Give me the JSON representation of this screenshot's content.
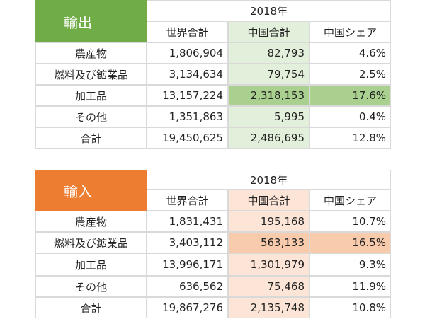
{
  "export": {
    "label": "輸出",
    "year": "2018年",
    "headers": [
      "世界合計",
      "中国合計",
      "中国シェア"
    ],
    "rows": [
      [
        "農産物",
        "1,806,904",
        "82,793",
        "4.6%"
      ],
      [
        "燃料及び鉱業品",
        "3,134,634",
        "79,754",
        "2.5%"
      ],
      [
        "加工品",
        "13,157,224",
        "2,318,153",
        "17.6%"
      ],
      [
        "その他",
        "1,351,863",
        "5,995",
        "0.4%"
      ],
      [
        "合計",
        "19,450,625",
        "2,486,695",
        "12.8%"
      ]
    ]
  },
  "import": {
    "label": "輸入",
    "year": "2018年",
    "headers": [
      "世界合計",
      "中国合計",
      "中国シェア"
    ],
    "rows": [
      [
        "農産物",
        "1,831,431",
        "195,168",
        "10.7%"
      ],
      [
        "燃料及び鉱業品",
        "3,403,112",
        "563,133",
        "16.5%"
      ],
      [
        "加工品",
        "13,996,171",
        "1,301,979",
        "9.3%"
      ],
      [
        "その他",
        "636,562",
        "75,468",
        "11.9%"
      ],
      [
        "合計",
        "19,867,276",
        "2,135,748",
        "10.8%"
      ]
    ]
  }
}
